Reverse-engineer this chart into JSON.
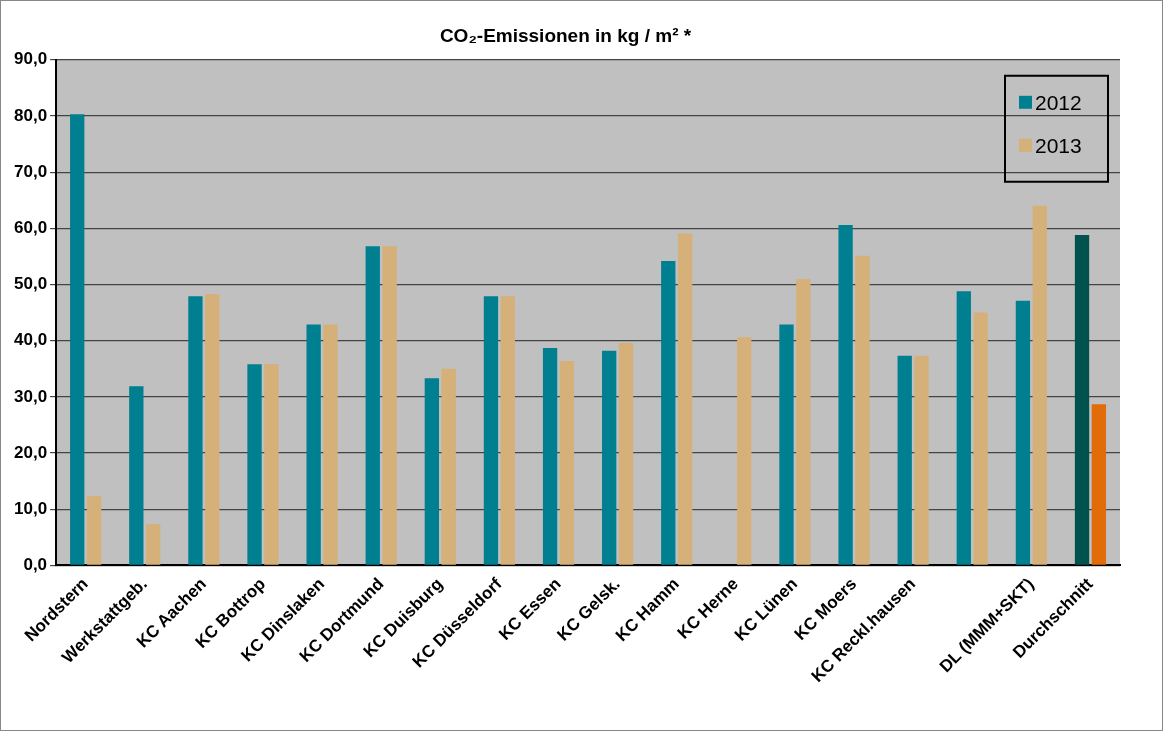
{
  "chart_data": {
    "type": "bar",
    "title": "CO₂-Emissionen in kg / m² *",
    "categories": [
      "Nordstern",
      "Werkstattgeb.",
      "KC Aachen",
      "KC Bottrop",
      "KC Dinslaken",
      "KC Dortmund",
      "KC Duisburg",
      "KC Düsseldorf",
      "KC Essen",
      "KC Gelsk.",
      "KC Hamm",
      "KC Herne",
      "KC Lünen",
      "KC Moers",
      "KC Reckl.hausen",
      null,
      "DL (MMM+SKT)",
      "Durchschnitt"
    ],
    "series": [
      {
        "name": "2012",
        "color": "#007f91",
        "colors": [
          "#007f91",
          "#007f91",
          "#007f91",
          "#007f91",
          "#007f91",
          "#007f91",
          "#007f91",
          "#007f91",
          "#007f91",
          "#007f91",
          "#007f91",
          "#007f91",
          "#007f91",
          "#007f91",
          "#007f91",
          "#007f91",
          "#007f91",
          "#00524f"
        ],
        "values": [
          80.3,
          31.9,
          47.9,
          35.8,
          42.9,
          56.8,
          33.3,
          47.9,
          38.7,
          38.2,
          54.2,
          null,
          42.9,
          60.6,
          37.3,
          48.8,
          47.1,
          58.8
        ]
      },
      {
        "name": "2013",
        "color": "#d5b078",
        "colors": [
          "#d5b078",
          "#d5b078",
          "#d5b078",
          "#d5b078",
          "#d5b078",
          "#d5b078",
          "#d5b078",
          "#d5b078",
          "#d5b078",
          "#d5b078",
          "#d5b078",
          "#d5b078",
          "#d5b078",
          "#d5b078",
          "#d5b078",
          "#d5b078",
          "#d5b078",
          "#e36c0a"
        ],
        "values": [
          12.3,
          7.3,
          48.3,
          35.8,
          42.9,
          56.8,
          35.0,
          47.9,
          36.4,
          39.6,
          59.1,
          40.6,
          51.0,
          55.1,
          37.3,
          45.0,
          64.0,
          28.7
        ]
      }
    ],
    "ylim": [
      0,
      90
    ],
    "yticks": [
      {
        "value": 0,
        "label": "0,0"
      },
      {
        "value": 10,
        "label": "10,0"
      },
      {
        "value": 20,
        "label": "20,0"
      },
      {
        "value": 30,
        "label": "30,0"
      },
      {
        "value": 40,
        "label": "40,0"
      },
      {
        "value": 50,
        "label": "50,0"
      },
      {
        "value": 60,
        "label": "60,0"
      },
      {
        "value": 70,
        "label": "70,0"
      },
      {
        "value": 80,
        "label": "80,0"
      },
      {
        "value": 90,
        "label": "90,0"
      }
    ],
    "grid": "y",
    "legend": "top right"
  }
}
